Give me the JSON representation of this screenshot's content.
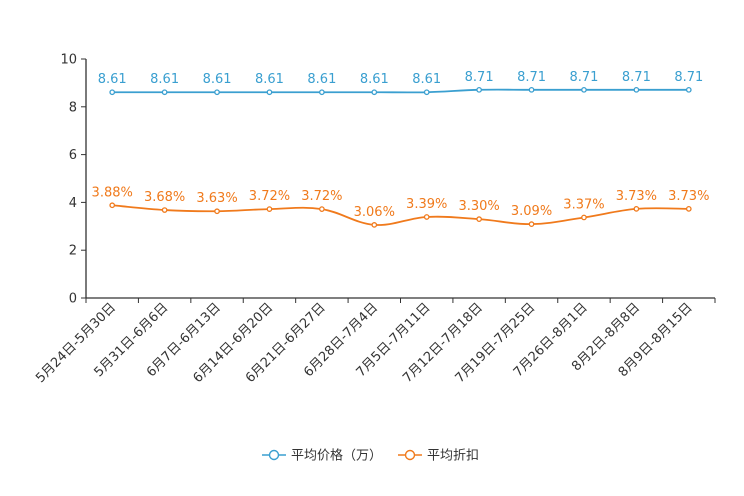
{
  "chart_data": {
    "type": "line",
    "title": "",
    "xlabel": "",
    "ylabel": "",
    "ylim": [
      0,
      10
    ],
    "yticks": [
      0,
      2,
      4,
      6,
      8,
      10
    ],
    "grid": false,
    "legend_position": "bottom-center",
    "categories": [
      "5月24日-5月30日",
      "5月31日-6月6日",
      "6月7日-6月13日",
      "6月14日-6月20日",
      "6月21日-6月27日",
      "6月28日-7月4日",
      "7月5日-7月11日",
      "7月12日-7月18日",
      "7月19日-7月25日",
      "7月26日-8月1日",
      "8月2日-8月8日",
      "8月9日-8月15日"
    ],
    "series": [
      {
        "name": "平均价格（万）",
        "color": "#3a9fd0",
        "values": [
          8.61,
          8.61,
          8.61,
          8.61,
          8.61,
          8.61,
          8.61,
          8.71,
          8.71,
          8.71,
          8.71,
          8.71
        ],
        "labels": [
          "8.61",
          "8.61",
          "8.61",
          "8.61",
          "8.61",
          "8.61",
          "8.61",
          "8.71",
          "8.71",
          "8.71",
          "8.71",
          "8.71"
        ]
      },
      {
        "name": "平均折扣",
        "color": "#f07a1c",
        "values": [
          3.88,
          3.68,
          3.63,
          3.72,
          3.72,
          3.06,
          3.39,
          3.3,
          3.09,
          3.37,
          3.73,
          3.73
        ],
        "labels": [
          "3.88%",
          "3.68%",
          "3.63%",
          "3.72%",
          "3.72%",
          "3.06%",
          "3.39%",
          "3.30%",
          "3.09%",
          "3.37%",
          "3.73%",
          "3.73%"
        ]
      }
    ]
  }
}
